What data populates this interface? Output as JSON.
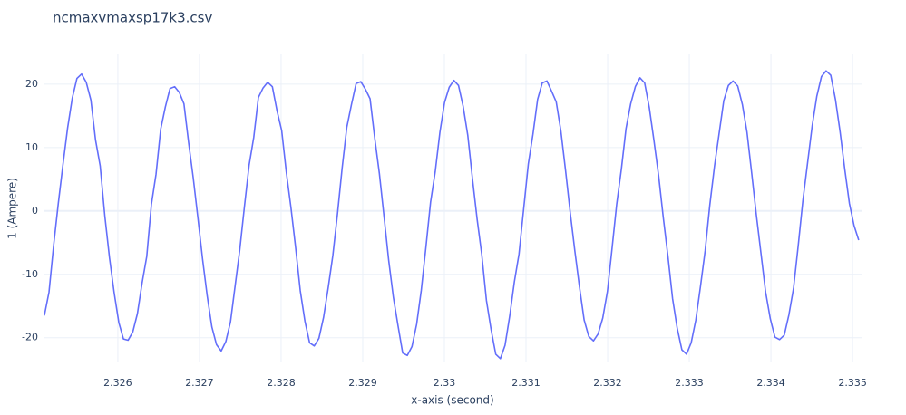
{
  "chart_data": {
    "type": "line",
    "title": "ncmaxvmaxsp17k3.csv",
    "x_label": "x-axis (second)",
    "y_label": "1 (Ampere)",
    "color": "#636efa",
    "grid": true,
    "xlim": [
      2.32509,
      2.33511
    ],
    "ylim": [
      -23.9,
      24.7
    ],
    "xticks": [
      2.326,
      2.327,
      2.328,
      2.329,
      2.33,
      2.331,
      2.332,
      2.333,
      2.334,
      2.335
    ],
    "yticks": [
      -20,
      -10,
      0,
      10,
      20
    ],
    "x": [
      2.3251,
      2.325157,
      2.325214,
      2.325271,
      2.325328,
      2.325385,
      2.325442,
      2.325499,
      2.325556,
      2.325613,
      2.32567,
      2.325727,
      2.325784,
      2.325841,
      2.325898,
      2.325955,
      2.326012,
      2.326069,
      2.326126,
      2.326183,
      2.32624,
      2.326297,
      2.326354,
      2.326411,
      2.326468,
      2.326525,
      2.326582,
      2.326639,
      2.326696,
      2.326753,
      2.32681,
      2.326867,
      2.326924,
      2.326981,
      2.327038,
      2.327095,
      2.327152,
      2.327209,
      2.327266,
      2.327323,
      2.32738,
      2.327437,
      2.327494,
      2.327551,
      2.327608,
      2.327665,
      2.327722,
      2.327779,
      2.327836,
      2.327893,
      2.32795,
      2.328007,
      2.328064,
      2.328121,
      2.328178,
      2.328235,
      2.328292,
      2.328349,
      2.328406,
      2.328463,
      2.32852,
      2.328577,
      2.328634,
      2.328691,
      2.328748,
      2.328805,
      2.328862,
      2.328919,
      2.328976,
      2.329033,
      2.32909,
      2.329147,
      2.329204,
      2.329261,
      2.329318,
      2.329375,
      2.329432,
      2.329489,
      2.329546,
      2.329603,
      2.32966,
      2.329717,
      2.329774,
      2.329831,
      2.329888,
      2.329945,
      2.330002,
      2.330059,
      2.330116,
      2.330173,
      2.33023,
      2.330287,
      2.330344,
      2.330401,
      2.330458,
      2.330515,
      2.330572,
      2.330629,
      2.330686,
      2.330743,
      2.3308,
      2.330857,
      2.330914,
      2.330971,
      2.331028,
      2.331085,
      2.331142,
      2.331199,
      2.331256,
      2.331313,
      2.33137,
      2.331427,
      2.331484,
      2.331541,
      2.331598,
      2.331655,
      2.331712,
      2.331769,
      2.331826,
      2.331883,
      2.33194,
      2.331997,
      2.332054,
      2.332111,
      2.332168,
      2.332225,
      2.332282,
      2.332339,
      2.332396,
      2.332453,
      2.33251,
      2.332567,
      2.332624,
      2.332681,
      2.332738,
      2.332795,
      2.332852,
      2.332909,
      2.332966,
      2.333023,
      2.33308,
      2.333137,
      2.333194,
      2.333251,
      2.333308,
      2.333365,
      2.333422,
      2.333479,
      2.333536,
      2.333593,
      2.33365,
      2.333707,
      2.333764,
      2.333821,
      2.333878,
      2.333935,
      2.333992,
      2.334049,
      2.334106,
      2.334163,
      2.33422,
      2.334277,
      2.334334,
      2.334391,
      2.334448,
      2.334505,
      2.334562,
      2.334619,
      2.334676,
      2.334733,
      2.33479,
      2.334847,
      2.334904,
      2.334961,
      2.335018,
      2.335075
    ],
    "values": [
      -16.5,
      -12.8,
      -5.4,
      1.2,
      7.3,
      13.1,
      17.8,
      20.9,
      21.6,
      20.3,
      17.5,
      11.2,
      7.1,
      -0.8,
      -7.4,
      -12.9,
      -17.6,
      -20.2,
      -20.4,
      -19.1,
      -16.2,
      -11.4,
      -7.2,
      1.0,
      5.8,
      12.9,
      16.4,
      19.3,
      19.6,
      18.7,
      16.9,
      10.8,
      5.2,
      -1.1,
      -7.6,
      -13.4,
      -18.3,
      -21.1,
      -22.1,
      -20.6,
      -17.5,
      -11.8,
      -6.1,
      0.7,
      7.2,
      11.6,
      17.9,
      19.4,
      20.3,
      19.6,
      15.8,
      12.7,
      6.1,
      0.5,
      -5.8,
      -12.6,
      -17.4,
      -20.8,
      -21.3,
      -20.1,
      -16.8,
      -12.1,
      -7.0,
      -0.4,
      6.8,
      13.2,
      16.8,
      20.1,
      20.4,
      19.2,
      17.7,
      11.5,
      5.9,
      -0.9,
      -7.8,
      -13.6,
      -18.1,
      -22.4,
      -22.8,
      -21.4,
      -17.9,
      -12.5,
      -5.7,
      1.4,
      6.2,
      12.4,
      17.1,
      19.5,
      20.6,
      19.8,
      16.5,
      11.9,
      5.1,
      -1.3,
      -6.9,
      -14.1,
      -18.7,
      -22.6,
      -23.3,
      -21.2,
      -16.6,
      -11.2,
      -6.8,
      0.3,
      7.4,
      12.1,
      17.6,
      20.2,
      20.5,
      18.9,
      17.2,
      12.6,
      6.4,
      -0.2,
      -6.3,
      -12.0,
      -17.2,
      -19.8,
      -20.5,
      -19.4,
      -16.9,
      -12.7,
      -5.9,
      1.1,
      6.6,
      13.0,
      16.9,
      19.6,
      21.0,
      20.2,
      16.3,
      11.1,
      5.6,
      -1.0,
      -7.1,
      -13.8,
      -18.5,
      -21.9,
      -22.6,
      -20.8,
      -17.2,
      -11.9,
      -6.3,
      0.9,
      7.0,
      12.2,
      17.4,
      19.8,
      20.5,
      19.7,
      16.8,
      12.4,
      6.0,
      -0.6,
      -6.7,
      -12.8,
      -17.0,
      -19.9,
      -20.3,
      -19.6,
      -16.4,
      -12.2,
      -5.5,
      1.6,
      7.5,
      13.4,
      18.1,
      21.2,
      22.1,
      21.4,
      17.6,
      12.5,
      6.6,
      1.2,
      -2.3,
      -4.6
    ]
  }
}
